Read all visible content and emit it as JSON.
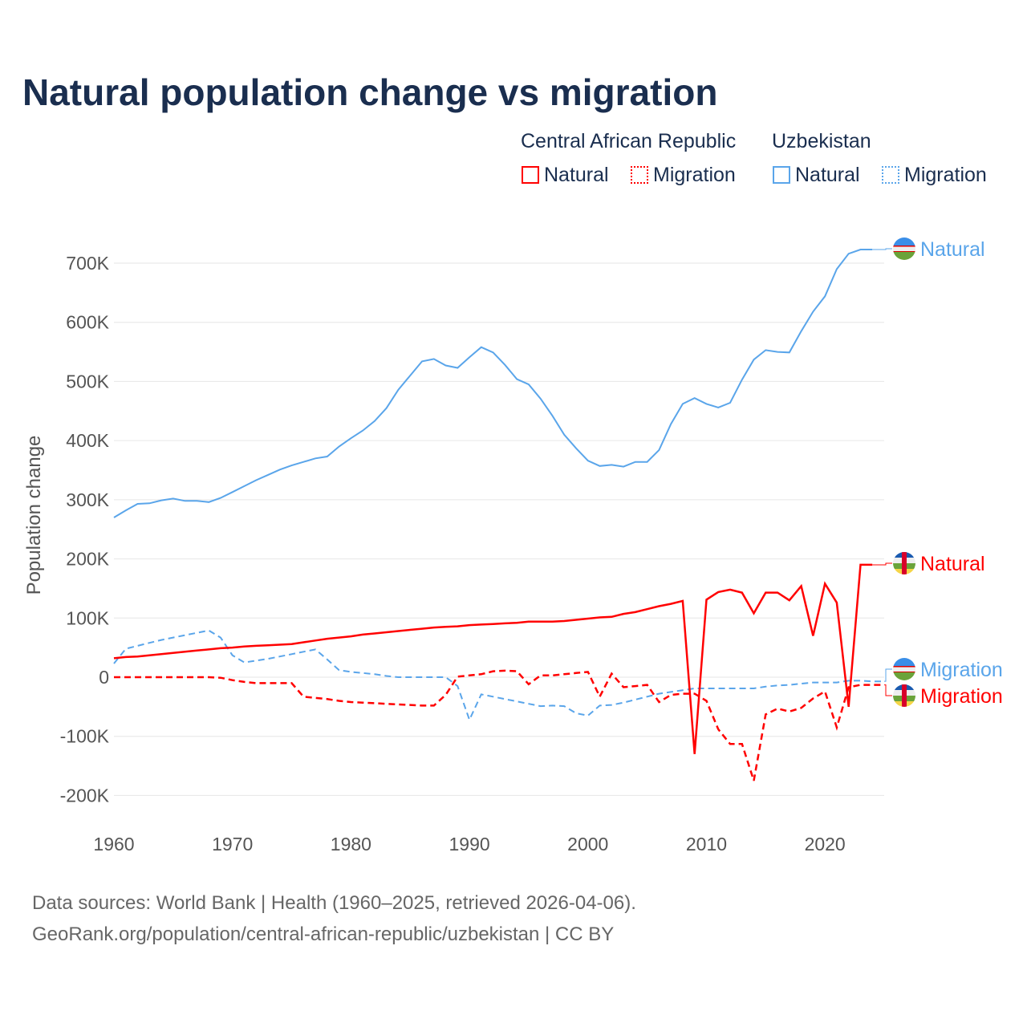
{
  "title": "Natural population change vs migration",
  "legend": {
    "groups": [
      {
        "country": "Central African Republic",
        "natural": "Natural",
        "migration": "Migration",
        "color": "#ff0000"
      },
      {
        "country": "Uzbekistan",
        "natural": "Natural",
        "migration": "Migration",
        "color": "#5aa5ea"
      }
    ]
  },
  "footer": {
    "line1": "Data sources: World Bank | Health (1960–2025, retrieved 2026-04-06).",
    "line2": "GeoRank.org/population/central-african-republic/uzbekistan | CC BY"
  },
  "chart_data": {
    "type": "line",
    "title": "Natural population change vs migration",
    "xlabel": "",
    "ylabel": "Population change",
    "xlim": [
      1960,
      2025
    ],
    "ylim": [
      -200000,
      700000
    ],
    "x_ticks": [
      "1960",
      "1970",
      "1980",
      "1990",
      "2000",
      "2010",
      "2020"
    ],
    "y_ticks": [
      "-200K",
      "-100K",
      "0",
      "100K",
      "200K",
      "300K",
      "400K",
      "500K",
      "600K",
      "700K"
    ],
    "y_tick_values": [
      -200,
      -100,
      0,
      100,
      200,
      300,
      400,
      500,
      600,
      700
    ],
    "units": "thousands",
    "grid": true,
    "start_year": 1960,
    "series": [
      {
        "name": "Uzbekistan Natural",
        "label": "Natural",
        "country": "Uzbekistan",
        "color": "#5aa5ea",
        "dash": false,
        "values": [
          270,
          282,
          293,
          294,
          299,
          302,
          298,
          298,
          296,
          303,
          313,
          323,
          333,
          342,
          351,
          358,
          364,
          370,
          373,
          390,
          404,
          417,
          433,
          455,
          486,
          510,
          534,
          538,
          527,
          523,
          541,
          558,
          549,
          528,
          504,
          495,
          471,
          442,
          410,
          387,
          366,
          357,
          359,
          356,
          364,
          364,
          384,
          428,
          462,
          472,
          462,
          456,
          464,
          503,
          537,
          553,
          550,
          549,
          585,
          618,
          644,
          690,
          716,
          723,
          723
        ]
      },
      {
        "name": "Uzbekistan Migration",
        "label": "Migration",
        "country": "Uzbekistan",
        "color": "#5aa5ea",
        "dash": true,
        "values": [
          23,
          48,
          53,
          58,
          63,
          67,
          71,
          75,
          79,
          67,
          37,
          25,
          28,
          31,
          35,
          39,
          43,
          47,
          30,
          12,
          9,
          7,
          5,
          2,
          0,
          0,
          0,
          0,
          0,
          -15,
          -72,
          -29,
          -33,
          -37,
          -41,
          -45,
          -49,
          -48,
          -49,
          -61,
          -65,
          -48,
          -47,
          -43,
          -38,
          -33,
          -28,
          -25,
          -22,
          -19,
          -19,
          -19,
          -19,
          -19,
          -19,
          -16,
          -14,
          -13,
          -11,
          -9,
          -9,
          -9,
          -6,
          -6,
          -7,
          -7
        ]
      },
      {
        "name": "Central African Republic Natural",
        "label": "Natural",
        "country": "Central African Republic",
        "color": "#ff0000",
        "dash": false,
        "values": [
          32,
          34,
          35,
          37,
          39,
          41,
          43,
          45,
          47,
          49,
          50,
          52,
          53,
          54,
          55,
          56,
          59,
          62,
          65,
          67,
          69,
          72,
          74,
          76,
          78,
          80,
          82,
          84,
          85,
          86,
          88,
          89,
          90,
          91,
          92,
          94,
          94,
          94,
          95,
          97,
          99,
          101,
          102,
          107,
          110,
          115,
          120,
          124,
          129,
          -130,
          131,
          144,
          148,
          143,
          108,
          143,
          143,
          130,
          154,
          70,
          158,
          126,
          -50,
          190,
          190
        ]
      },
      {
        "name": "Central African Republic Migration",
        "label": "Migration",
        "country": "Central African Republic",
        "color": "#ff0000",
        "dash": true,
        "values": [
          0,
          0,
          0,
          0,
          0,
          0,
          0,
          0,
          0,
          -1,
          -5,
          -8,
          -10,
          -10,
          -10,
          -10,
          -33,
          -35,
          -37,
          -40,
          -42,
          -43,
          -44,
          -45,
          -46,
          -47,
          -48,
          -48,
          -30,
          1,
          3,
          5,
          10,
          11,
          10,
          -12,
          3,
          3,
          5,
          7,
          9,
          -33,
          6,
          -17,
          -15,
          -13,
          -42,
          -30,
          -28,
          -28,
          -40,
          -88,
          -113,
          -113,
          -175,
          -63,
          -53,
          -58,
          -52,
          -36,
          -24,
          -85,
          -17,
          -13,
          -13,
          -13
        ]
      }
    ]
  }
}
